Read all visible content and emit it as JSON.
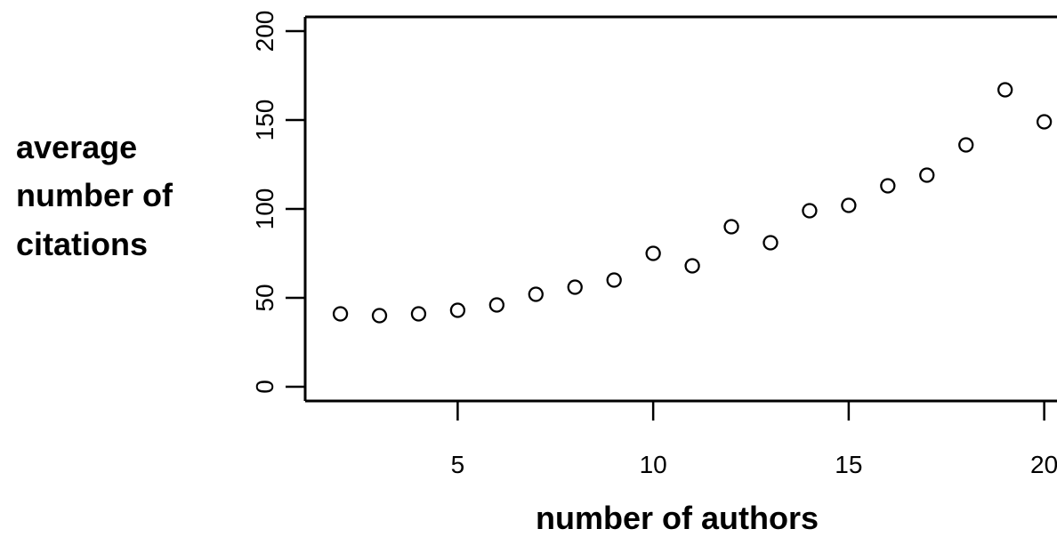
{
  "chart_data": {
    "type": "scatter",
    "title": "",
    "xlabel": "number of authors",
    "ylabel": [
      "average",
      "number of",
      "citations"
    ],
    "x": [
      2,
      3,
      4,
      5,
      6,
      7,
      8,
      9,
      10,
      11,
      12,
      13,
      14,
      15,
      16,
      17,
      18,
      19,
      20
    ],
    "y": [
      41,
      40,
      41,
      43,
      46,
      52,
      56,
      60,
      75,
      68,
      90,
      81,
      99,
      102,
      113,
      119,
      136,
      167,
      149
    ],
    "xlim": [
      1.1,
      20.6
    ],
    "ylim": [
      -8,
      208
    ],
    "xticks": [
      5,
      10,
      15,
      20
    ],
    "yticks": [
      0,
      50,
      100,
      150,
      200
    ],
    "grid": false,
    "marker": "open-circle",
    "colors": {
      "marker": "#000000",
      "axis": "#000000",
      "background": "#ffffff"
    }
  }
}
